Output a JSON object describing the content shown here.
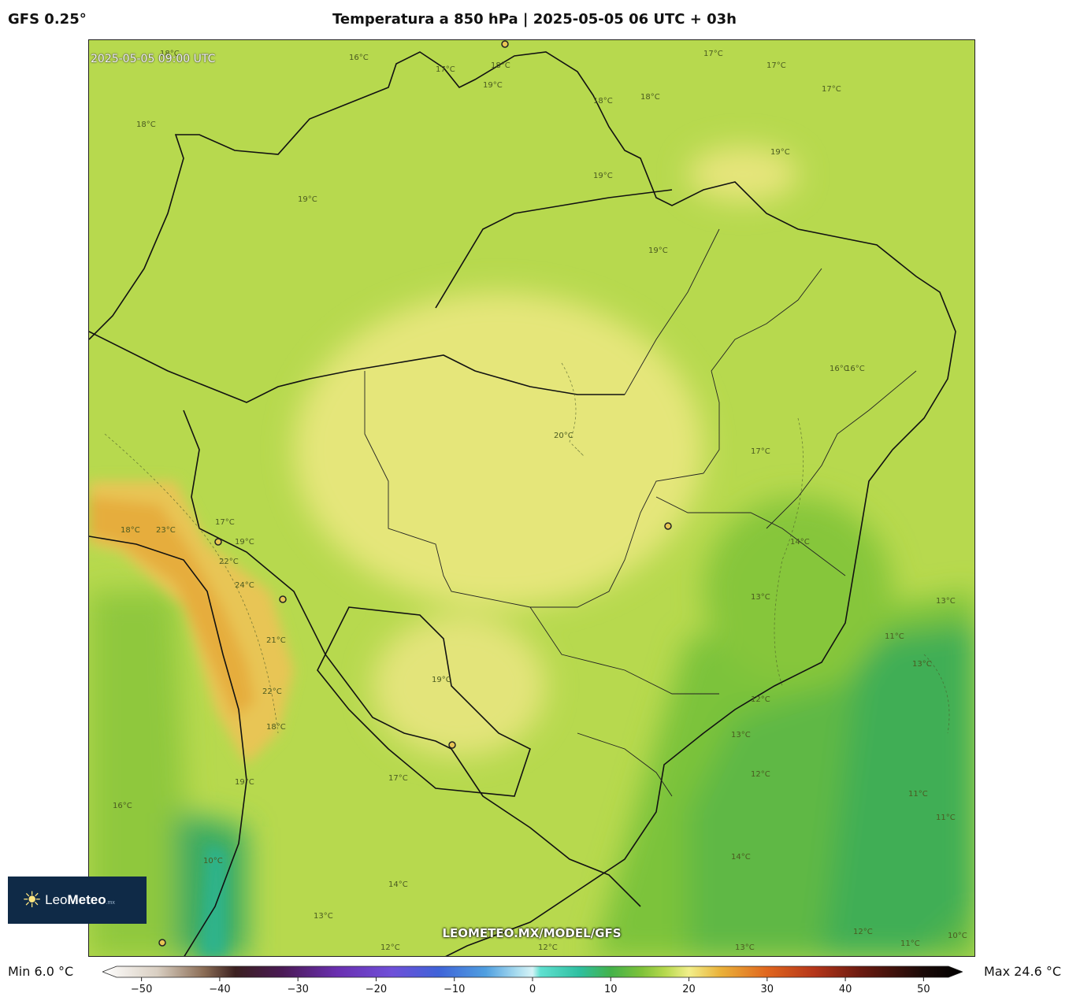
{
  "header": {
    "model": "GFS 0.25°",
    "title": "Temperatura a 850 hPa | 2025-05-05 06 UTC + 03h"
  },
  "map": {
    "valid_time": "2025-05-05 09:00 UTC",
    "watermark": "LEOMETEO.MX/MODEL/GFS",
    "contour_labels": [
      "18°C",
      "16°C",
      "17°C",
      "17°C",
      "17°C",
      "17°C",
      "18°C",
      "18°C",
      "18°C",
      "18°C",
      "19°C",
      "19°C",
      "19°C",
      "19°C",
      "20°C",
      "19°C",
      "16°C",
      "17°C",
      "17°C",
      "18°C",
      "23°C",
      "22°C",
      "24°C",
      "19°C",
      "21°C",
      "22°C",
      "18°C",
      "19°C",
      "17°C",
      "19°C",
      "14°C",
      "13°C",
      "13°C",
      "11°C",
      "13°C",
      "12°C",
      "13°C",
      "12°C",
      "11°C",
      "11°C",
      "14°C",
      "12°C",
      "11°C",
      "10°C",
      "13°C",
      "12°C",
      "12°C",
      "13°C",
      "16°C",
      "16°C",
      "14°C",
      "10°C"
    ],
    "colors": {
      "warm_yellow": "#ece97d",
      "base_green": "#b7d94e",
      "mid_green": "#86c63a",
      "cool_green": "#4fb04f",
      "orange": "#e8b23c",
      "border": "#111111"
    }
  },
  "logo": {
    "brand_light": "Leo",
    "brand_bold": "Meteo",
    "suffix": ".mx"
  },
  "legend": {
    "min_label": "Min 6.0 °C",
    "max_label": "Max 24.6 °C",
    "ticks": [
      "−50",
      "−40",
      "−30",
      "−20",
      "−10",
      "0",
      "10",
      "20",
      "30",
      "40",
      "50"
    ],
    "tick_values": [
      -50,
      -40,
      -30,
      -20,
      -10,
      0,
      10,
      20,
      30,
      40,
      50
    ],
    "range": [
      -55,
      55
    ],
    "stops": [
      {
        "v": -55,
        "c": "#ffffff"
      },
      {
        "v": -48,
        "c": "#d9cfc2"
      },
      {
        "v": -42,
        "c": "#8a6c55"
      },
      {
        "v": -38,
        "c": "#3b2020"
      },
      {
        "v": -32,
        "c": "#4a1a55"
      },
      {
        "v": -25,
        "c": "#6a2fb0"
      },
      {
        "v": -18,
        "c": "#6f4fd8"
      },
      {
        "v": -12,
        "c": "#3f63d8"
      },
      {
        "v": -6,
        "c": "#4f9fe0"
      },
      {
        "v": -2,
        "c": "#a9dcef"
      },
      {
        "v": 0,
        "c": "#d6f3f7"
      },
      {
        "v": 1,
        "c": "#5fe0d0"
      },
      {
        "v": 6,
        "c": "#2fbfa0"
      },
      {
        "v": 10,
        "c": "#43b24a"
      },
      {
        "v": 14,
        "c": "#7fc23a"
      },
      {
        "v": 17,
        "c": "#b7d94e"
      },
      {
        "v": 20,
        "c": "#f2ef8a"
      },
      {
        "v": 24,
        "c": "#eab23a"
      },
      {
        "v": 30,
        "c": "#e0661e"
      },
      {
        "v": 36,
        "c": "#b5361a"
      },
      {
        "v": 42,
        "c": "#6a1a10"
      },
      {
        "v": 50,
        "c": "#1a0a08"
      },
      {
        "v": 55,
        "c": "#000000"
      }
    ]
  }
}
